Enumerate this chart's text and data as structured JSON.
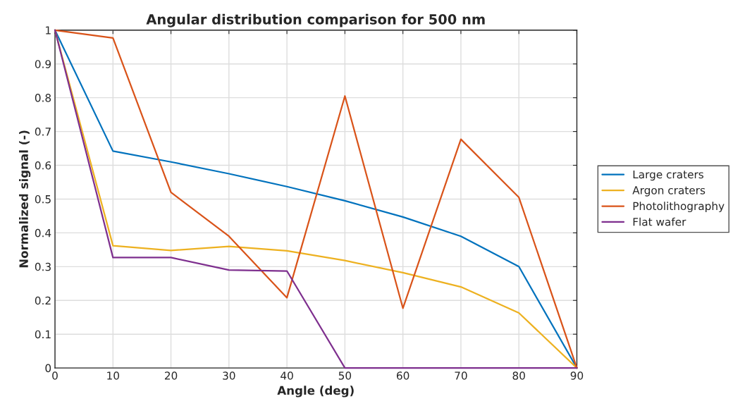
{
  "chart_data": {
    "type": "line",
    "title": "Angular distribution comparison for 500 nm",
    "xlabel": "Angle (deg)",
    "ylabel": "Normalized signal (-)",
    "x": [
      0,
      10,
      20,
      30,
      40,
      50,
      60,
      70,
      80,
      90
    ],
    "series": [
      {
        "name": "Large craters",
        "color": "#0072bd",
        "values": [
          1,
          0.642,
          0.61,
          0.575,
          0.537,
          0.495,
          0.447,
          0.39,
          0.3,
          0
        ]
      },
      {
        "name": "Argon craters",
        "color": "#edb120",
        "values": [
          1,
          0.362,
          0.348,
          0.36,
          0.347,
          0.318,
          0.282,
          0.24,
          0.163,
          0
        ]
      },
      {
        "name": "Photolithography",
        "color": "#d95319",
        "values": [
          1,
          0.977,
          0.52,
          0.39,
          0.208,
          0.805,
          0.177,
          0.677,
          0.505,
          0
        ]
      },
      {
        "name": "Flat wafer",
        "color": "#7e2f8e",
        "values": [
          1,
          0.327,
          0.327,
          0.29,
          0.287,
          0,
          0,
          0,
          0,
          0
        ]
      }
    ],
    "xlim": [
      0,
      90
    ],
    "xticks": [
      0,
      10,
      20,
      30,
      40,
      50,
      60,
      70,
      80,
      90
    ],
    "ylim": [
      0,
      1
    ],
    "yticks": [
      0,
      0.1,
      0.2,
      0.3,
      0.4,
      0.5,
      0.6,
      0.7,
      0.8,
      0.9,
      1
    ],
    "grid": true,
    "legend": "right",
    "marker": "none",
    "line_style": "solid"
  }
}
